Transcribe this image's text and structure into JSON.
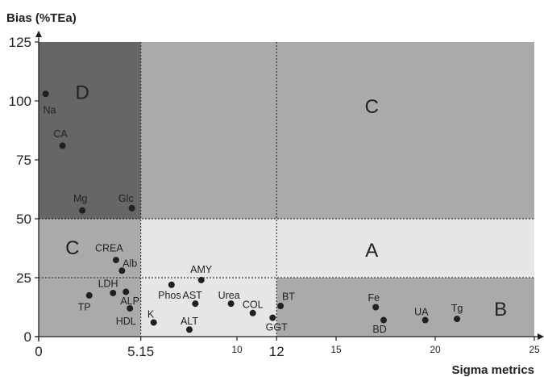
{
  "chart_data": {
    "type": "scatter",
    "xlabel": "Sigma metrics",
    "ylabel": "Bias (%TEa)",
    "xlim": [
      0,
      25
    ],
    "ylim": [
      0,
      125
    ],
    "x_ticks": [
      {
        "value": 0,
        "label": "0",
        "size": "large"
      },
      {
        "value": 5.15,
        "label": "5.15",
        "size": "large"
      },
      {
        "value": 10,
        "label": "10",
        "size": "small"
      },
      {
        "value": 12,
        "label": "12",
        "size": "large"
      },
      {
        "value": 15,
        "label": "15",
        "size": "small"
      },
      {
        "value": 20,
        "label": "20",
        "size": "small"
      },
      {
        "value": 25,
        "label": "25",
        "size": "small"
      }
    ],
    "y_ticks": [
      0,
      25,
      50,
      75,
      100,
      125
    ],
    "region_colors": {
      "dark": "#666666",
      "medium": "#aaaaaa",
      "light": "#e6e6e6"
    },
    "regions": [
      {
        "x": [
          0,
          5.15
        ],
        "y": [
          50,
          125
        ],
        "shade": "dark"
      },
      {
        "x": [
          5.15,
          25
        ],
        "y": [
          50,
          125
        ],
        "shade": "medium"
      },
      {
        "x": [
          0,
          5.15
        ],
        "y": [
          0,
          50
        ],
        "shade": "medium"
      },
      {
        "x": [
          5.15,
          25
        ],
        "y": [
          25,
          50
        ],
        "shade": "light"
      },
      {
        "x": [
          5.15,
          12
        ],
        "y": [
          0,
          25
        ],
        "shade": "light"
      },
      {
        "x": [
          12,
          25
        ],
        "y": [
          0,
          25
        ],
        "shade": "medium"
      }
    ],
    "region_labels": [
      {
        "text": "D",
        "x": 2.2,
        "y": 104
      },
      {
        "text": "C",
        "x": 16.8,
        "y": 98
      },
      {
        "text": "C",
        "x": 1.7,
        "y": 38
      },
      {
        "text": "A",
        "x": 16.8,
        "y": 37
      },
      {
        "text": "B",
        "x": 23.3,
        "y": 12
      }
    ],
    "points": [
      {
        "name": "Na",
        "x": 0.35,
        "y": 103,
        "lx": 0.55,
        "ly": 96
      },
      {
        "name": "CA",
        "x": 1.2,
        "y": 81,
        "lx": 1.1,
        "ly": 86
      },
      {
        "name": "Mg",
        "x": 2.2,
        "y": 53.5,
        "lx": 2.1,
        "ly": 58.5
      },
      {
        "name": "Glc",
        "x": 4.7,
        "y": 54.5,
        "lx": 4.4,
        "ly": 58.5
      },
      {
        "name": "CREA",
        "x": 3.9,
        "y": 32.5,
        "lx": 3.55,
        "ly": 37.5
      },
      {
        "name": "Alb",
        "x": 4.2,
        "y": 28,
        "lx": 4.6,
        "ly": 31
      },
      {
        "name": "LDH",
        "x": 3.75,
        "y": 18.5,
        "lx": 3.5,
        "ly": 22.5
      },
      {
        "name": "TP",
        "x": 2.55,
        "y": 17.5,
        "lx": 2.3,
        "ly": 12.5
      },
      {
        "name": "ALP",
        "x": 4.4,
        "y": 19,
        "lx": 4.6,
        "ly": 15
      },
      {
        "name": "HDL",
        "x": 4.6,
        "y": 12,
        "lx": 4.4,
        "ly": 6.5
      },
      {
        "name": "K",
        "x": 5.8,
        "y": 6,
        "lx": 5.65,
        "ly": 9.5
      },
      {
        "name": "Phos",
        "x": 6.7,
        "y": 22,
        "lx": 6.6,
        "ly": 17.5
      },
      {
        "name": "AST",
        "x": 7.9,
        "y": 14,
        "lx": 7.75,
        "ly": 17.5
      },
      {
        "name": "AMY",
        "x": 8.2,
        "y": 24,
        "lx": 8.2,
        "ly": 28.5
      },
      {
        "name": "ALT",
        "x": 7.6,
        "y": 3,
        "lx": 7.6,
        "ly": 6.5
      },
      {
        "name": "Urea",
        "x": 9.7,
        "y": 14,
        "lx": 9.6,
        "ly": 17.5
      },
      {
        "name": "COL",
        "x": 10.8,
        "y": 10,
        "lx": 10.8,
        "ly": 13.5
      },
      {
        "name": "GGT",
        "x": 11.8,
        "y": 8,
        "lx": 12.0,
        "ly": 4
      },
      {
        "name": "BT",
        "x": 12.2,
        "y": 13,
        "lx": 12.6,
        "ly": 17
      },
      {
        "name": "Fe",
        "x": 17.0,
        "y": 12.5,
        "lx": 16.9,
        "ly": 16.5
      },
      {
        "name": "BD",
        "x": 17.4,
        "y": 7,
        "lx": 17.2,
        "ly": 3
      },
      {
        "name": "UA",
        "x": 19.5,
        "y": 7,
        "lx": 19.3,
        "ly": 10.5
      },
      {
        "name": "Tg",
        "x": 21.1,
        "y": 7.5,
        "lx": 21.1,
        "ly": 12
      }
    ]
  }
}
